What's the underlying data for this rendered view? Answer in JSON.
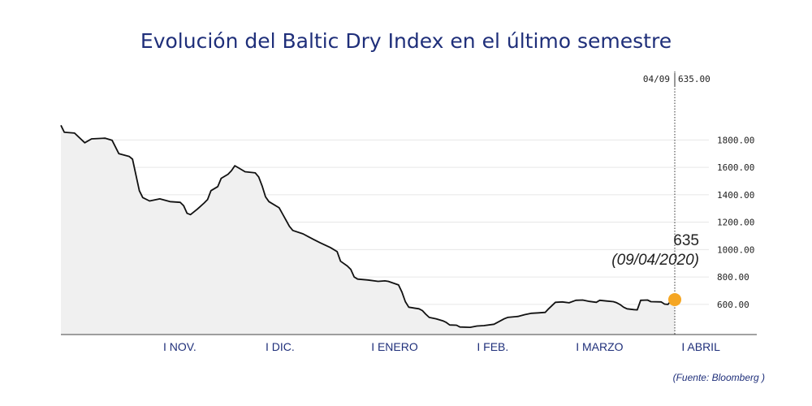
{
  "title": "Evolución del Baltic Dry Index en el último semestre",
  "source": "(Fuente: Bloomberg )",
  "header": {
    "date": "04/09",
    "value": "635.00"
  },
  "annotation": {
    "value": "635",
    "date": "(09/04/2020)"
  },
  "colors": {
    "line": "#111111",
    "area": "#f0f0f0",
    "marker": "#f5a623",
    "title": "#1f2f7a"
  },
  "chart_data": {
    "type": "area",
    "title": "Evolución del Baltic Dry Index en el último semestre",
    "xlabel": "",
    "ylabel": "",
    "ylim": [
      380,
      1980
    ],
    "yticks": [
      {
        "value": 1800,
        "label": "1800.00"
      },
      {
        "value": 1600,
        "label": "1600.00"
      },
      {
        "value": 1400,
        "label": "1400.00"
      },
      {
        "value": 1200,
        "label": "1200.00"
      },
      {
        "value": 1000,
        "label": "1000.00"
      },
      {
        "value": 800,
        "label": "800.00"
      },
      {
        "value": 600,
        "label": "600.00"
      }
    ],
    "xticks": [
      {
        "x": 30,
        "label": "I NOV."
      },
      {
        "x": 60,
        "label": "I DIC."
      },
      {
        "x": 91,
        "label": "I ENERO"
      },
      {
        "x": 122,
        "label": "I FEB."
      },
      {
        "x": 151,
        "label": "I MARZO"
      },
      {
        "x": 182,
        "label": "I ABRIL"
      }
    ],
    "xlim": [
      0,
      190
    ],
    "series": [
      {
        "values": [
          [
            0,
            1907
          ],
          [
            1,
            1856
          ],
          [
            4,
            1850
          ],
          [
            7,
            1780
          ],
          [
            9,
            1808
          ],
          [
            13,
            1813
          ],
          [
            15,
            1798
          ],
          [
            17,
            1700
          ],
          [
            20,
            1680
          ],
          [
            21,
            1660
          ],
          [
            23,
            1430
          ],
          [
            24,
            1380
          ],
          [
            26,
            1355
          ],
          [
            29,
            1370
          ],
          [
            32,
            1350
          ],
          [
            35,
            1345
          ],
          [
            36,
            1320
          ],
          [
            37,
            1265
          ],
          [
            38,
            1255
          ],
          [
            40,
            1295
          ],
          [
            42,
            1340
          ],
          [
            43,
            1365
          ],
          [
            44,
            1430
          ],
          [
            46,
            1460
          ],
          [
            47,
            1520
          ],
          [
            49,
            1550
          ],
          [
            50,
            1575
          ],
          [
            51,
            1612
          ],
          [
            52,
            1598
          ],
          [
            54,
            1568
          ],
          [
            57,
            1560
          ],
          [
            58,
            1530
          ],
          [
            59,
            1465
          ],
          [
            60,
            1385
          ],
          [
            61,
            1350
          ],
          [
            64,
            1305
          ],
          [
            65,
            1260
          ],
          [
            66,
            1215
          ],
          [
            67,
            1170
          ],
          [
            68,
            1140
          ],
          [
            71,
            1115
          ],
          [
            74,
            1075
          ],
          [
            76,
            1050
          ],
          [
            79,
            1015
          ],
          [
            81,
            985
          ],
          [
            82,
            915
          ],
          [
            84,
            880
          ],
          [
            85,
            855
          ],
          [
            86,
            800
          ],
          [
            87,
            785
          ],
          [
            90,
            778
          ],
          [
            93,
            768
          ],
          [
            95,
            772
          ],
          [
            96,
            768
          ],
          [
            99,
            742
          ],
          [
            100,
            690
          ],
          [
            101,
            620
          ],
          [
            102,
            580
          ],
          [
            105,
            568
          ],
          [
            106,
            555
          ],
          [
            107,
            528
          ],
          [
            108,
            505
          ],
          [
            110,
            495
          ],
          [
            112,
            480
          ],
          [
            113,
            468
          ],
          [
            114,
            450
          ],
          [
            116,
            448
          ],
          [
            117,
            435
          ],
          [
            120,
            433
          ],
          [
            122,
            442
          ],
          [
            124,
            445
          ],
          [
            127,
            455
          ],
          [
            130,
            495
          ],
          [
            131,
            505
          ],
          [
            134,
            512
          ],
          [
            136,
            525
          ],
          [
            138,
            535
          ],
          [
            140,
            538
          ],
          [
            142,
            542
          ],
          [
            143,
            568
          ],
          [
            145,
            615
          ],
          [
            147,
            618
          ],
          [
            149,
            612
          ],
          [
            151,
            630
          ],
          [
            153,
            632
          ],
          [
            155,
            622
          ],
          [
            157,
            615
          ],
          [
            158,
            630
          ],
          [
            160,
            625
          ],
          [
            162,
            620
          ],
          [
            163,
            612
          ],
          [
            164,
            598
          ],
          [
            165,
            580
          ],
          [
            166,
            568
          ],
          [
            168,
            562
          ],
          [
            169,
            560
          ],
          [
            170,
            630
          ],
          [
            172,
            632
          ],
          [
            173,
            620
          ],
          [
            176,
            618
          ],
          [
            177,
            602
          ],
          [
            178,
            600
          ],
          [
            179,
            630
          ],
          [
            180,
            635
          ]
        ]
      }
    ],
    "last_point": {
      "x": 180,
      "y": 635
    },
    "grid": true,
    "legend": "none"
  }
}
